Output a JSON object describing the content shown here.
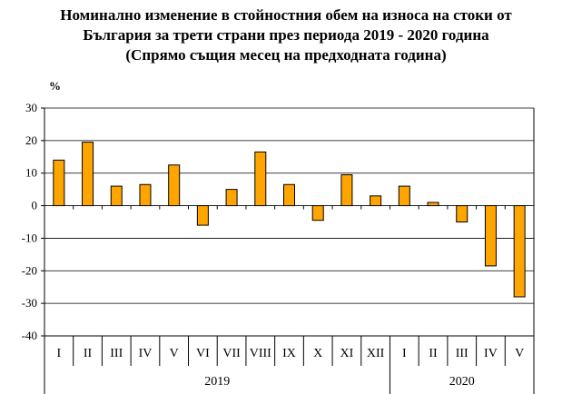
{
  "title_lines": [
    "Номинално изменение в стойностния обем  на износа на стоки от",
    "България за трети страни през периода 2019 - 2020 година",
    "(Спрямо същия месец на предходната година)"
  ],
  "chart_data": {
    "type": "bar",
    "ylabel": "%",
    "ylim": [
      -40,
      30
    ],
    "yticks": [
      30,
      20,
      10,
      0,
      -10,
      -20,
      -30,
      -40
    ],
    "grid": true,
    "bar_color": "#FFA500",
    "categories": [
      "I",
      "II",
      "III",
      "IV",
      "V",
      "VI",
      "VII",
      "VIII",
      "IX",
      "X",
      "XI",
      "XII",
      "I",
      "II",
      "III",
      "IV",
      "V"
    ],
    "values": [
      14,
      19.5,
      6,
      6.5,
      12.5,
      -6,
      5,
      16.5,
      6.5,
      -4.5,
      9.5,
      3,
      6,
      1,
      -5,
      -18.5,
      -28
    ],
    "year_groups": [
      {
        "label": "2019",
        "start": 0,
        "count": 12
      },
      {
        "label": "2020",
        "start": 12,
        "count": 5
      }
    ]
  }
}
